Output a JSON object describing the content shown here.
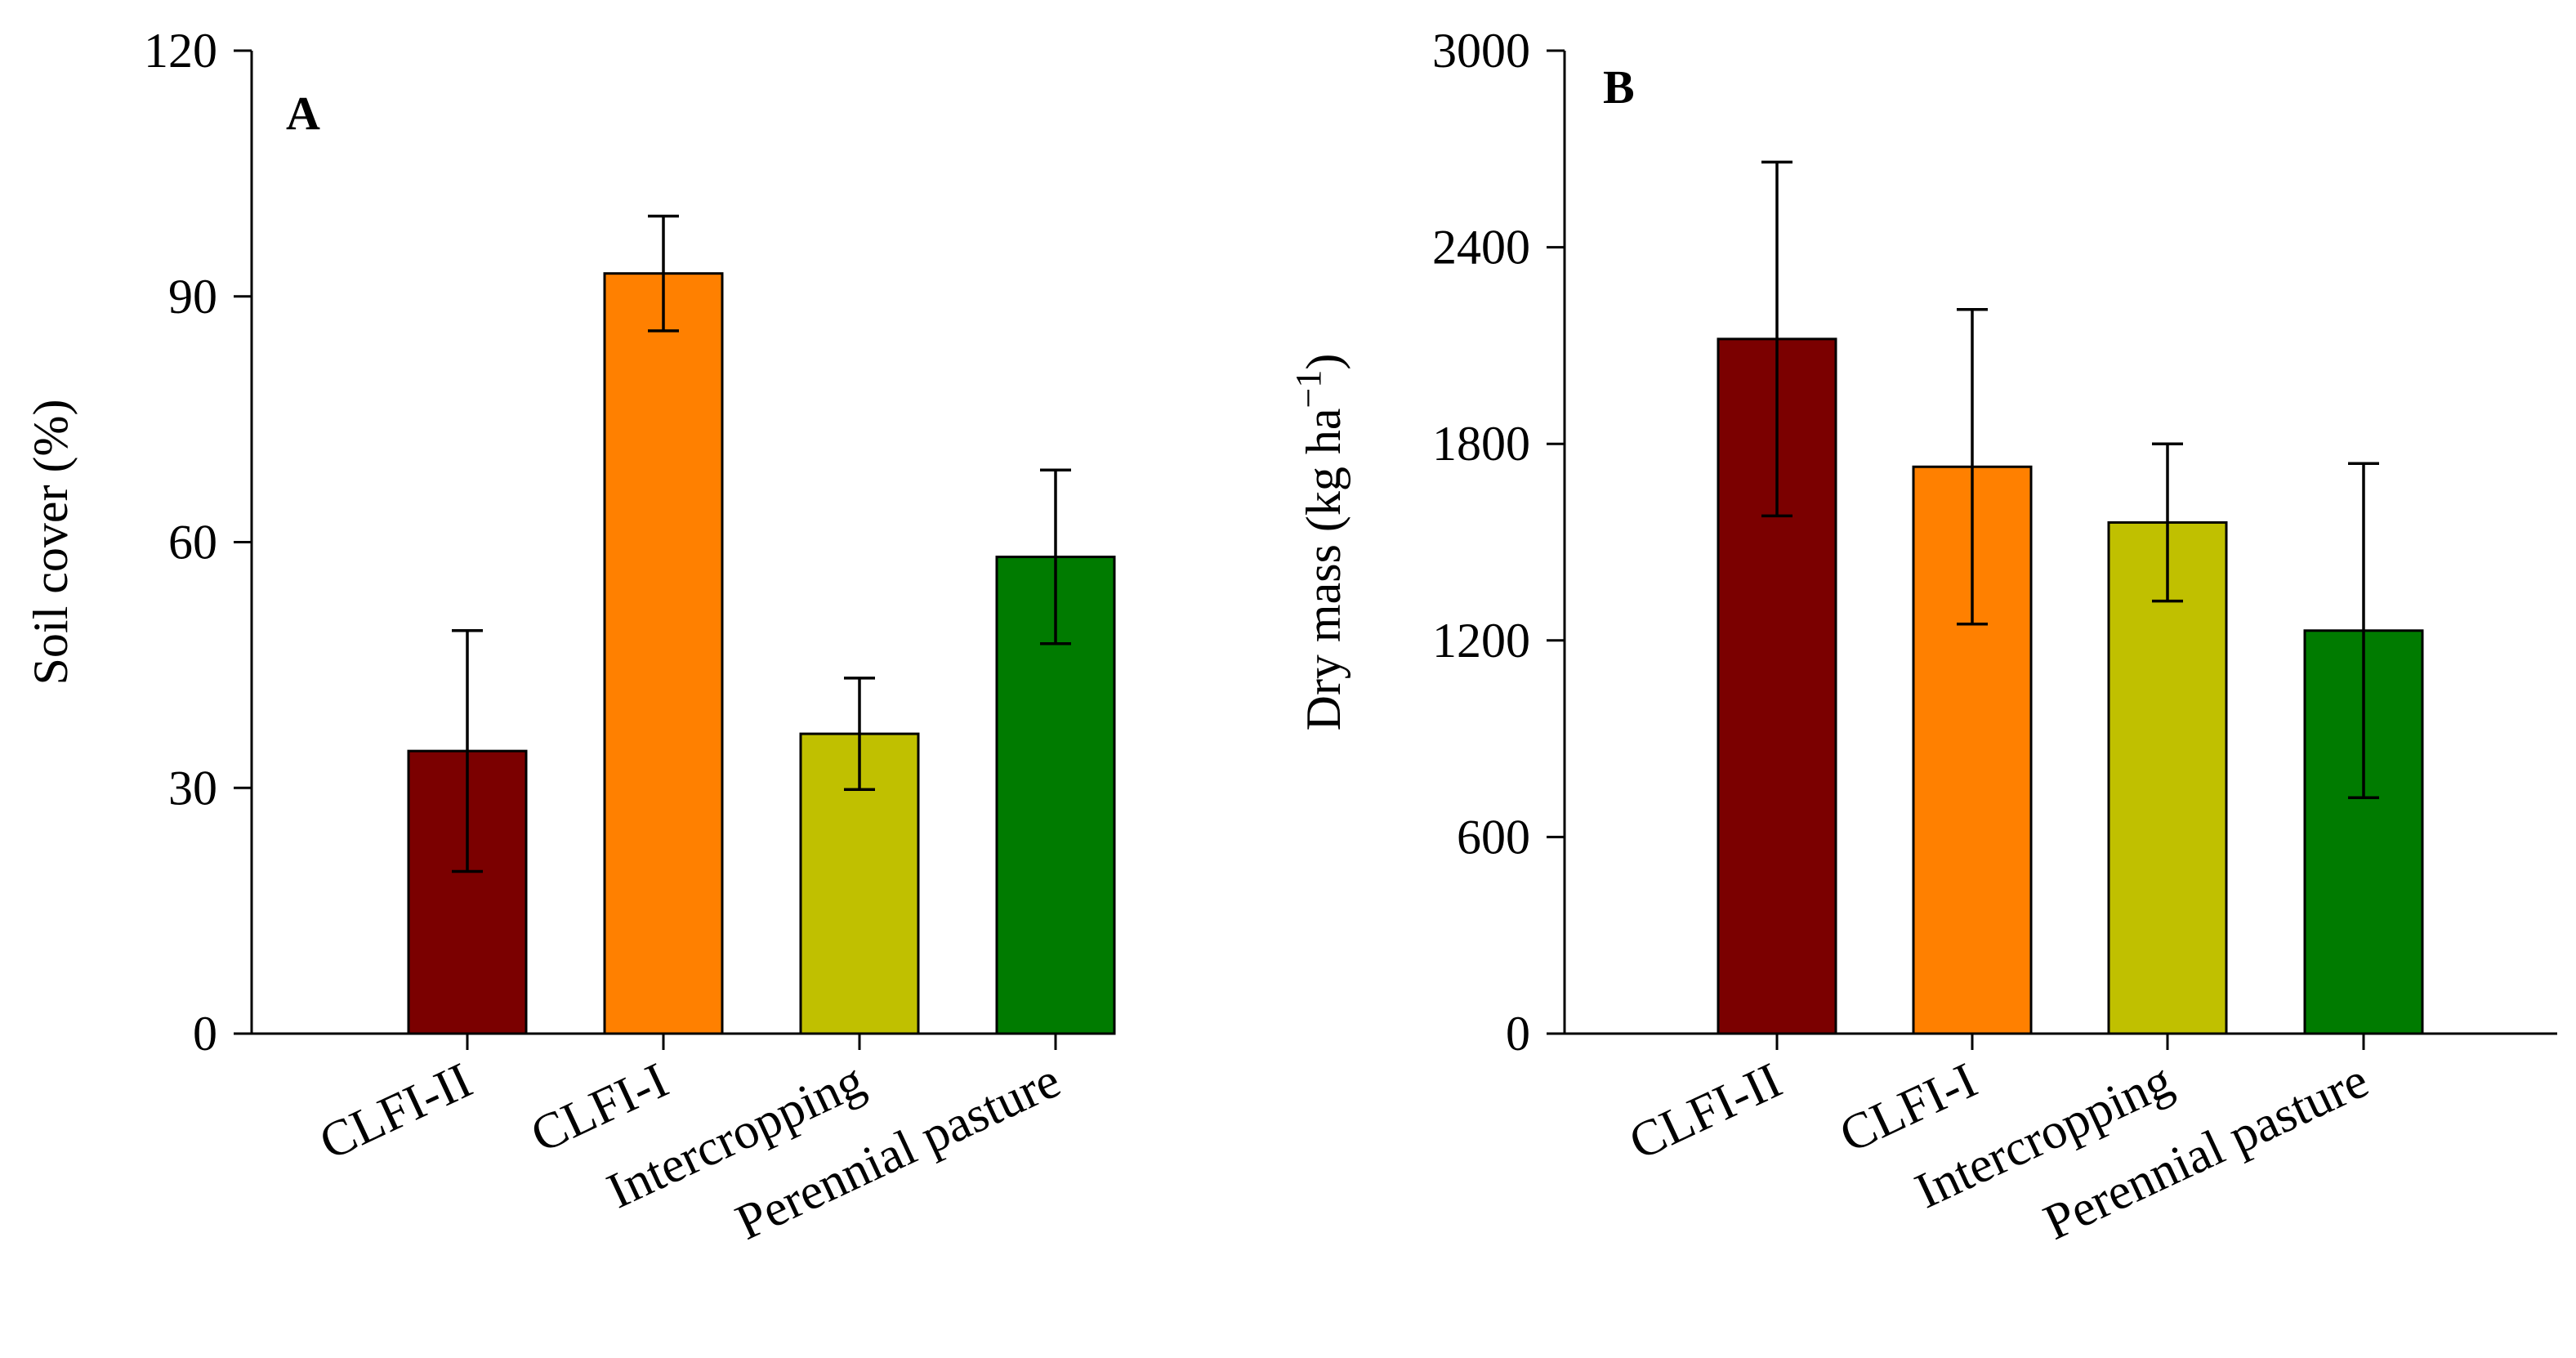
{
  "chart_data": [
    {
      "type": "bar",
      "panel": "A",
      "title": "",
      "xlabel": "",
      "ylabel": "Soil cover (%)",
      "ylim": [
        0,
        120
      ],
      "yticks": [
        0,
        30,
        60,
        90,
        120
      ],
      "categories": [
        "CLFI-II",
        "CLFI-I",
        "Intercropping",
        "Perennial pasture"
      ],
      "values": [
        34.5,
        92.8,
        36.6,
        58.2
      ],
      "errors": [
        14.7,
        7.0,
        6.8,
        10.6
      ],
      "colors": [
        "#7b0000",
        "#ff8000",
        "#c0c000",
        "#007b00"
      ]
    },
    {
      "type": "bar",
      "panel": "B",
      "title": "",
      "xlabel": "",
      "ylabel": "Dry mass (kg ha",
      "ylabel_sup": "−1",
      "ylabel_close": ")",
      "ylim": [
        0,
        3000
      ],
      "yticks": [
        0,
        600,
        1200,
        1800,
        2400,
        3000
      ],
      "categories": [
        "CLFI-II",
        "CLFI-I",
        "Intercropping",
        "Perennial pasture"
      ],
      "values": [
        2120,
        1730,
        1560,
        1230
      ],
      "errors": [
        540,
        480,
        240,
        510
      ],
      "colors": [
        "#7b0000",
        "#ff8000",
        "#c0c000",
        "#007b00"
      ]
    }
  ]
}
